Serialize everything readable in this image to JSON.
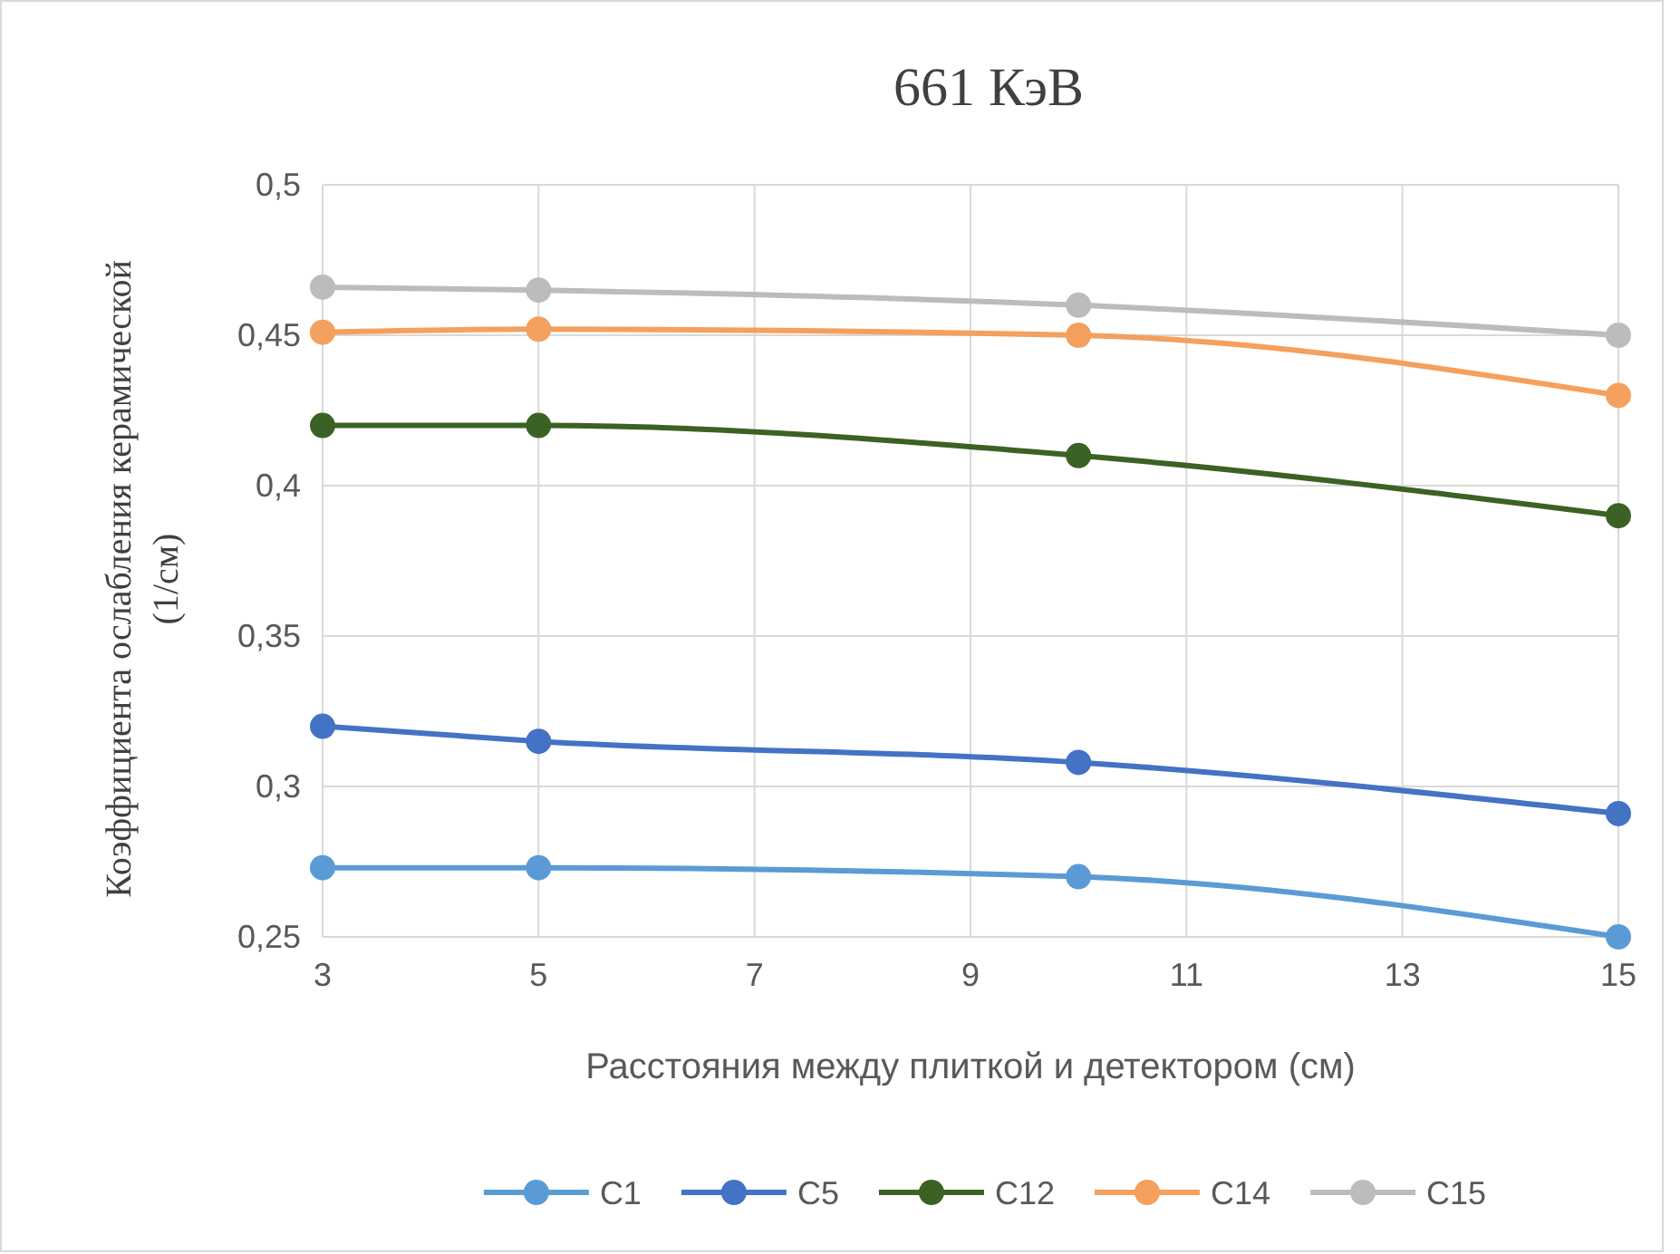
{
  "chart_data": {
    "type": "line",
    "title": "661 КэВ",
    "xlabel": "Расстояния между плиткой и детектором (см)",
    "ylabel": "Коэффициента ослабления керамической (1/см)",
    "x": [
      3,
      5,
      10,
      15
    ],
    "series": [
      {
        "name": "C1",
        "color": "#5b9bd5",
        "values": [
          0.273,
          0.273,
          0.27,
          0.25
        ]
      },
      {
        "name": "C5",
        "color": "#4472c4",
        "values": [
          0.32,
          0.315,
          0.308,
          0.291
        ]
      },
      {
        "name": "C12",
        "color": "#3b6224",
        "values": [
          0.42,
          0.42,
          0.41,
          0.39
        ]
      },
      {
        "name": "C14",
        "color": "#f4a05e",
        "values": [
          0.451,
          0.452,
          0.45,
          0.43
        ]
      },
      {
        "name": "C15",
        "color": "#bcbcbc",
        "values": [
          0.466,
          0.465,
          0.46,
          0.45
        ]
      }
    ],
    "xlim": [
      3,
      15
    ],
    "xticks": [
      3,
      5,
      7,
      9,
      11,
      13,
      15
    ],
    "ylim": [
      0.25,
      0.5
    ],
    "yticks": [
      {
        "value": 0.25,
        "label": "0,25"
      },
      {
        "value": 0.3,
        "label": "0,3"
      },
      {
        "value": 0.35,
        "label": "0,35"
      },
      {
        "value": 0.4,
        "label": "0,4"
      },
      {
        "value": 0.45,
        "label": "0,45"
      },
      {
        "value": 0.5,
        "label": "0,5"
      }
    ],
    "grid": true,
    "legend": "bottom",
    "marker": "circle",
    "line_style": "solid"
  }
}
